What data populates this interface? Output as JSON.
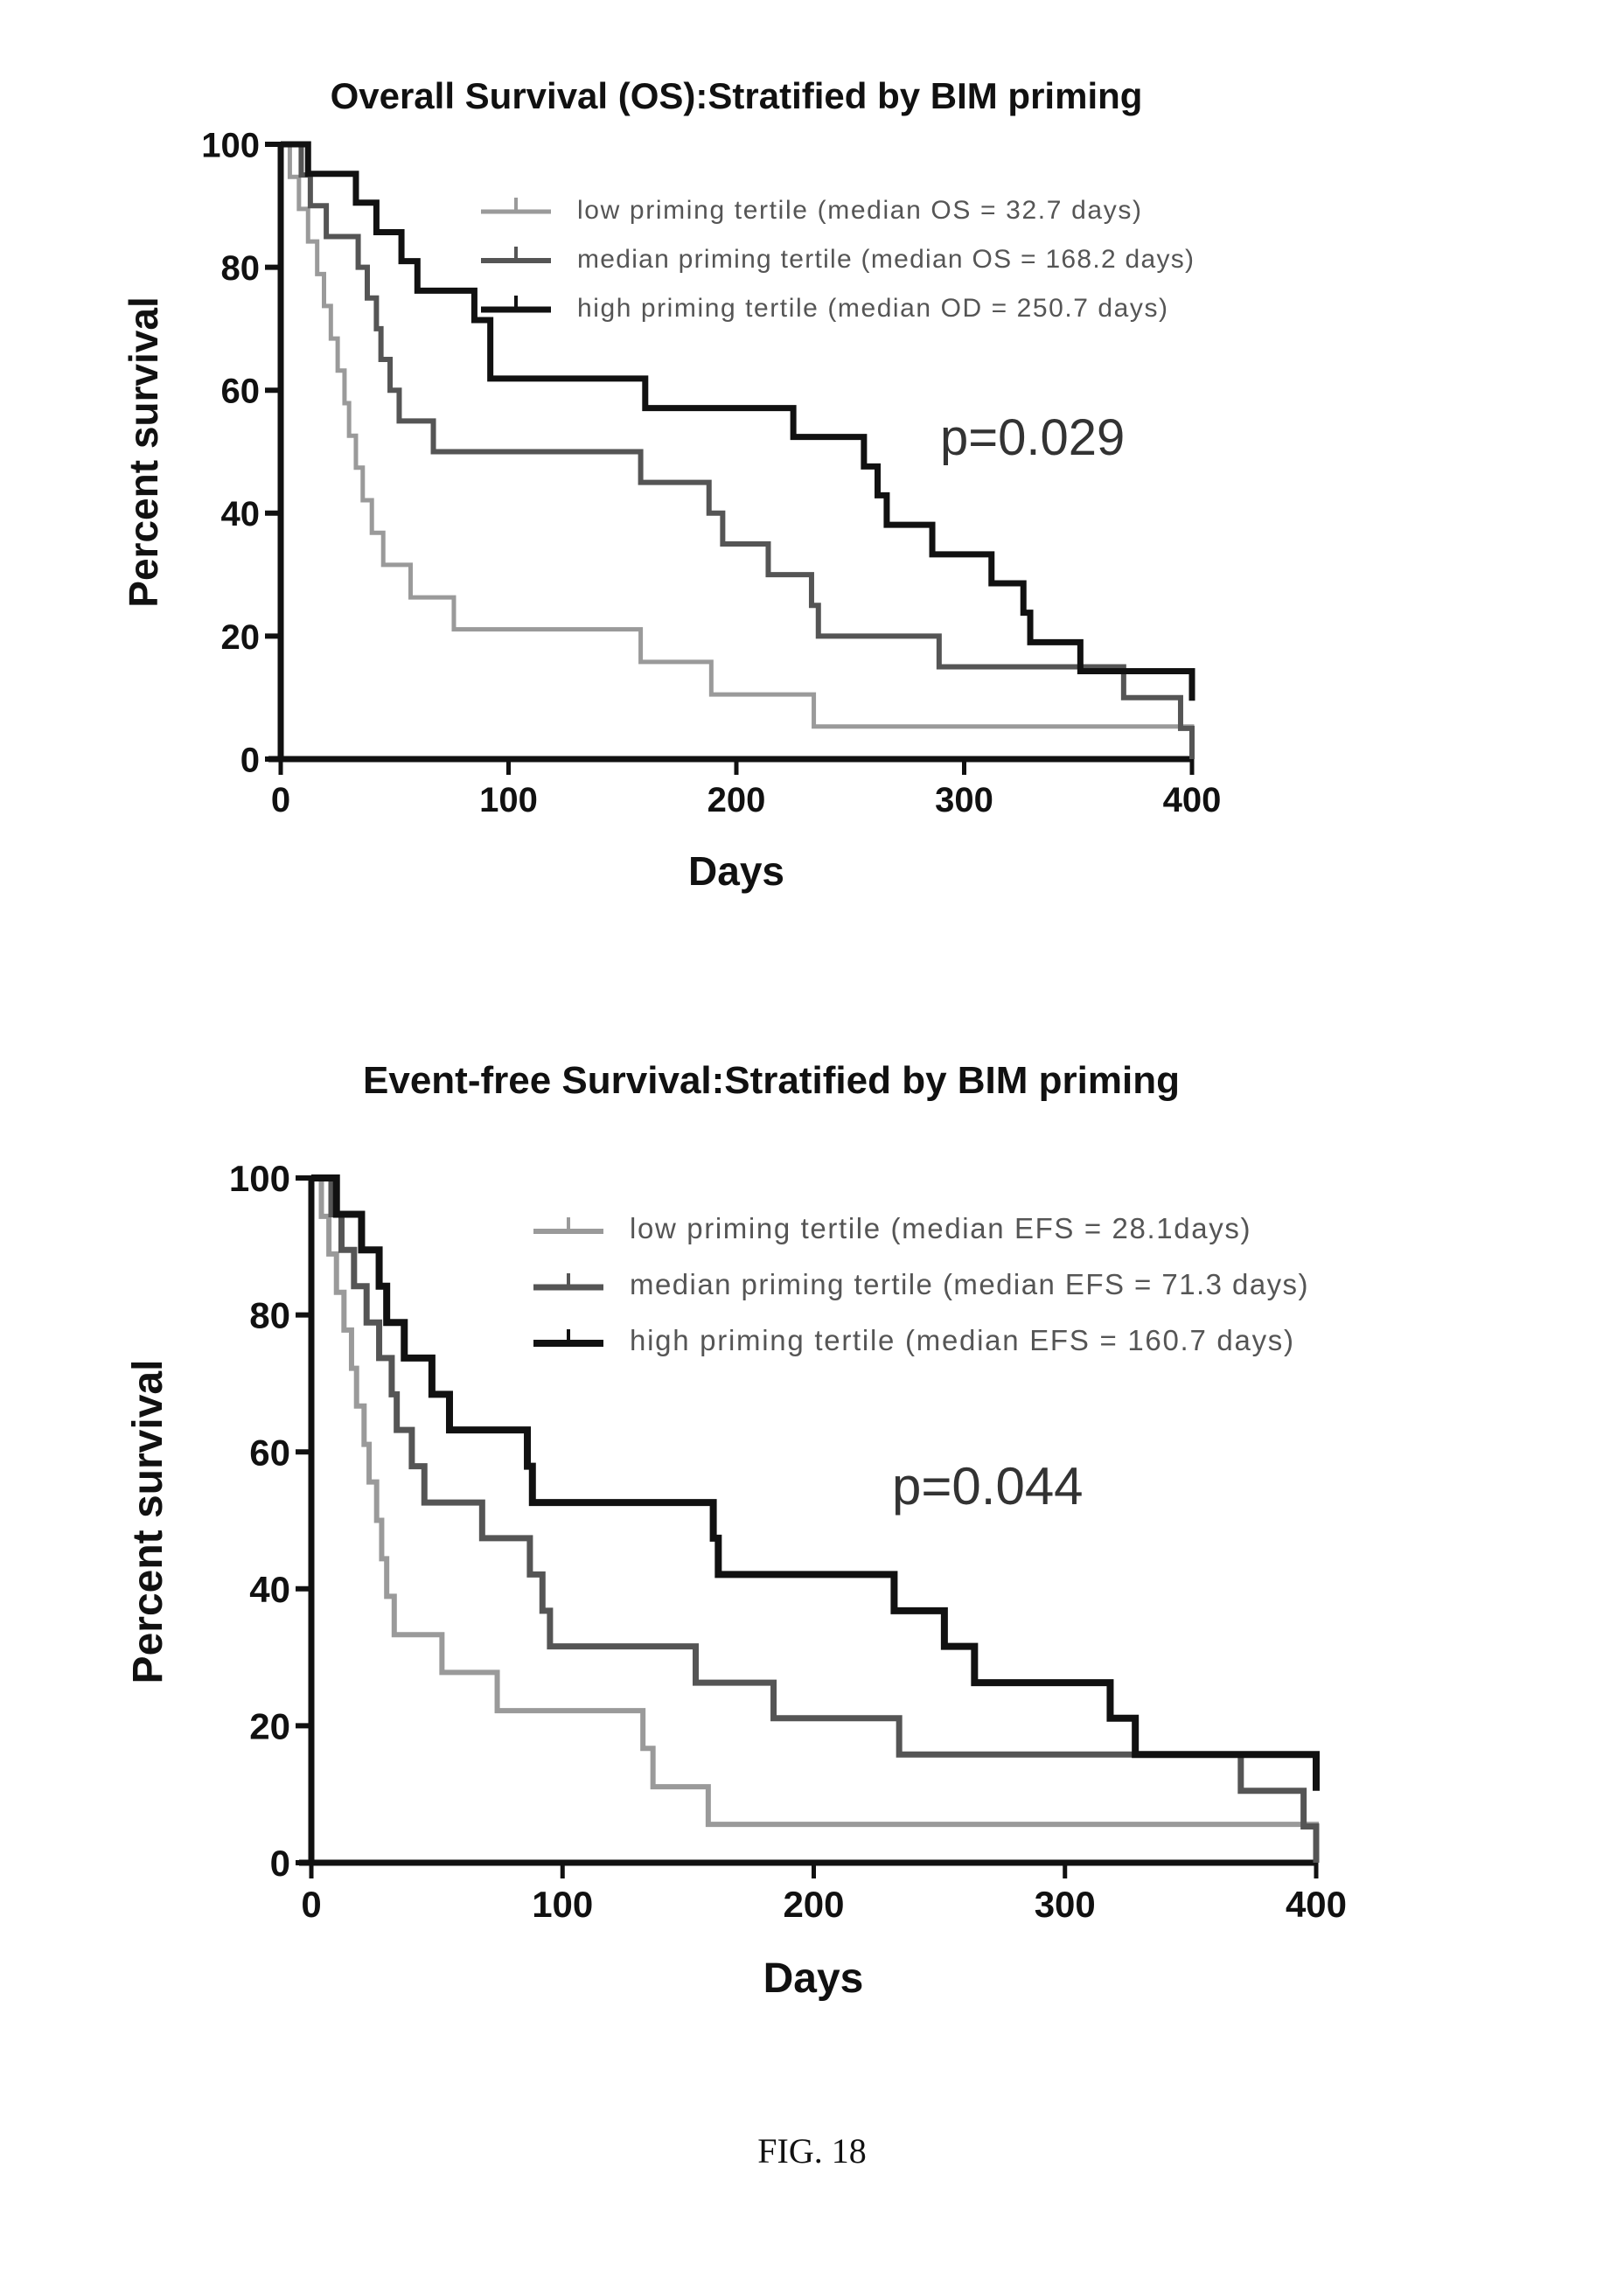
{
  "figure_caption": "FIG. 18",
  "chart_data": [
    {
      "type": "line",
      "subtype": "kaplan-meier step",
      "title": "Overall Survival (OS):Stratified by BIM priming",
      "xlabel": "Days",
      "ylabel": "Percent survival",
      "xlim": [
        0,
        400
      ],
      "ylim": [
        0,
        100
      ],
      "xticks": [
        "0",
        "100",
        "200",
        "300",
        "400"
      ],
      "yticks": [
        "0",
        "20",
        "40",
        "60",
        "80",
        "100"
      ],
      "grid": false,
      "legend_position": "top-right",
      "annotation": "p=0.029",
      "series": [
        {
          "name": "low priming tertile (median OS = 32.7 days)",
          "color": "#9a9a9a",
          "steps": [
            [
              0,
              100
            ],
            [
              4,
              94.7
            ],
            [
              8,
              89.5
            ],
            [
              12,
              84.2
            ],
            [
              16,
              78.9
            ],
            [
              19,
              73.7
            ],
            [
              22,
              68.4
            ],
            [
              25,
              63.2
            ],
            [
              28,
              57.9
            ],
            [
              30,
              52.6
            ],
            [
              33,
              47.4
            ],
            [
              36,
              42.1
            ],
            [
              40,
              36.8
            ],
            [
              45,
              31.6
            ],
            [
              57,
              26.3
            ],
            [
              76,
              21.1
            ],
            [
              158,
              15.8
            ],
            [
              189,
              10.5
            ],
            [
              234,
              5.3
            ],
            [
              254,
              5.3
            ],
            [
              400,
              0
            ]
          ]
        },
        {
          "name": "median priming tertile (median OS = 168.2 days)",
          "color": "#555555",
          "steps": [
            [
              0,
              100
            ],
            [
              9,
              95
            ],
            [
              13,
              90
            ],
            [
              20,
              85
            ],
            [
              34,
              80
            ],
            [
              38,
              75
            ],
            [
              42,
              70
            ],
            [
              44,
              65
            ],
            [
              48,
              60
            ],
            [
              52,
              55
            ],
            [
              67,
              50
            ],
            [
              158,
              45
            ],
            [
              188,
              40
            ],
            [
              194,
              35
            ],
            [
              214,
              30
            ],
            [
              233,
              25
            ],
            [
              236,
              20
            ],
            [
              289,
              15
            ],
            [
              370,
              10
            ],
            [
              395,
              5
            ],
            [
              400,
              0
            ]
          ]
        },
        {
          "name": "high priming tertile (median OD = 250.7 days)",
          "color": "#111111",
          "steps": [
            [
              0,
              100
            ],
            [
              12,
              95.2
            ],
            [
              33,
              90.5
            ],
            [
              42,
              85.7
            ],
            [
              53,
              81
            ],
            [
              60,
              76.2
            ],
            [
              85,
              71.4
            ],
            [
              92,
              61.9
            ],
            [
              160,
              57.1
            ],
            [
              225,
              52.4
            ],
            [
              256,
              47.6
            ],
            [
              262,
              42.9
            ],
            [
              266,
              38.1
            ],
            [
              286,
              33.3
            ],
            [
              312,
              28.6
            ],
            [
              326,
              23.8
            ],
            [
              329,
              19
            ],
            [
              351,
              14.3
            ],
            [
              400,
              9.5
            ]
          ]
        }
      ]
    },
    {
      "type": "line",
      "subtype": "kaplan-meier step",
      "title": "Event-free Survival:Stratified by BIM priming",
      "xlabel": "Days",
      "ylabel": "Percent survival",
      "xlim": [
        0,
        400
      ],
      "ylim": [
        0,
        100
      ],
      "xticks": [
        "0",
        "100",
        "200",
        "300",
        "400"
      ],
      "yticks": [
        "0",
        "20",
        "40",
        "60",
        "80",
        "100"
      ],
      "grid": false,
      "legend_position": "top-right",
      "annotation": "p=0.044",
      "series": [
        {
          "name": "low priming tertile (median EFS = 28.1days)",
          "color": "#9a9a9a",
          "steps": [
            [
              0,
              100
            ],
            [
              4,
              94.4
            ],
            [
              7,
              88.9
            ],
            [
              10,
              83.3
            ],
            [
              13,
              77.8
            ],
            [
              16,
              72.2
            ],
            [
              18,
              66.7
            ],
            [
              21,
              61.1
            ],
            [
              23,
              55.6
            ],
            [
              26,
              50
            ],
            [
              28,
              44.4
            ],
            [
              30,
              38.9
            ],
            [
              33,
              33.3
            ],
            [
              52,
              27.8
            ],
            [
              74,
              22.2
            ],
            [
              132,
              16.7
            ],
            [
              136,
              11.1
            ],
            [
              158,
              5.6
            ],
            [
              397,
              5.6
            ],
            [
              400,
              0
            ]
          ]
        },
        {
          "name": "median priming tertile (median EFS = 71.3 days)",
          "color": "#555555",
          "steps": [
            [
              0,
              100
            ],
            [
              8,
              94.7
            ],
            [
              12,
              89.5
            ],
            [
              17,
              84.2
            ],
            [
              22,
              78.9
            ],
            [
              27,
              73.7
            ],
            [
              32,
              68.4
            ],
            [
              34,
              63.2
            ],
            [
              40,
              57.9
            ],
            [
              45,
              52.6
            ],
            [
              68,
              47.4
            ],
            [
              87,
              42.1
            ],
            [
              92,
              36.8
            ],
            [
              95,
              31.6
            ],
            [
              153,
              26.3
            ],
            [
              184,
              21.1
            ],
            [
              234,
              15.8
            ],
            [
              370,
              10.5
            ],
            [
              395,
              5.3
            ],
            [
              400,
              0
            ]
          ]
        },
        {
          "name": "high priming tertile (median EFS = 160.7 days)",
          "color": "#111111",
          "steps": [
            [
              0,
              100
            ],
            [
              10,
              94.7
            ],
            [
              20,
              89.5
            ],
            [
              27,
              84.2
            ],
            [
              30,
              78.9
            ],
            [
              37,
              73.7
            ],
            [
              48,
              68.4
            ],
            [
              55,
              63.2
            ],
            [
              86,
              57.9
            ],
            [
              88,
              52.6
            ],
            [
              160,
              47.4
            ],
            [
              162,
              42.1
            ],
            [
              232,
              36.8
            ],
            [
              252,
              31.6
            ],
            [
              264,
              26.3
            ],
            [
              318,
              21.1
            ],
            [
              328,
              15.8
            ],
            [
              400,
              10.5
            ]
          ]
        }
      ]
    }
  ]
}
